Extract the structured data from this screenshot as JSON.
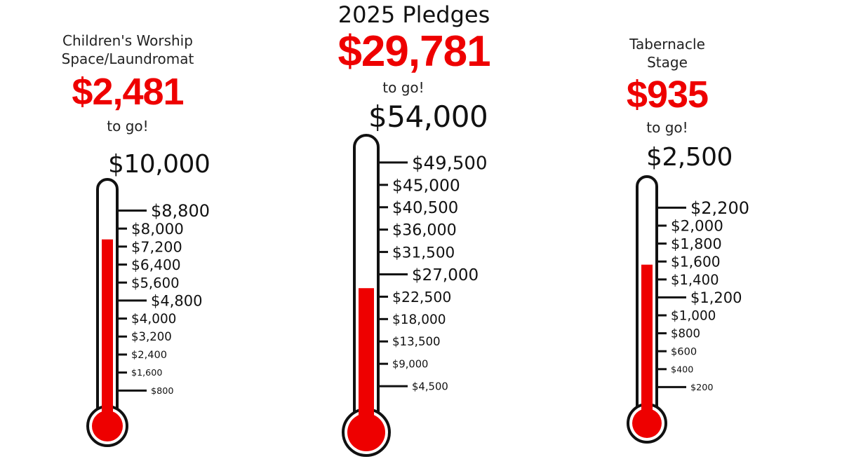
{
  "main_title": "2025 Pledges",
  "colors": {
    "fill": "#ee0000",
    "outline": "#111111",
    "text": "#111111"
  },
  "chart_data": [
    {
      "type": "thermometer",
      "title": "Children's Worship Space/Laundromat",
      "title_lines": [
        "Children's Worship",
        "Space/Laundromat"
      ],
      "remaining": "$2,481",
      "remaining_value": 2481,
      "to_go": "to go!",
      "goal": "$10,000",
      "goal_value": 10000,
      "raised_value": 7519,
      "ticks": [
        {
          "value": 8800,
          "label": "$8,800",
          "major": true
        },
        {
          "value": 8000,
          "label": "$8,000",
          "major": false
        },
        {
          "value": 7200,
          "label": "$7,200",
          "major": false
        },
        {
          "value": 6400,
          "label": "$6,400",
          "major": false
        },
        {
          "value": 5600,
          "label": "$5,600",
          "major": false
        },
        {
          "value": 4800,
          "label": "$4,800",
          "major": true
        },
        {
          "value": 4000,
          "label": "$4,000",
          "major": false
        },
        {
          "value": 3200,
          "label": "$3,200",
          "major": false
        },
        {
          "value": 2400,
          "label": "$2,400",
          "major": false
        },
        {
          "value": 1600,
          "label": "$1,600",
          "major": false
        },
        {
          "value": 800,
          "label": "$800",
          "major": true
        }
      ]
    },
    {
      "type": "thermometer",
      "title": "",
      "title_lines": [],
      "remaining": "$29,781",
      "remaining_value": 29781,
      "to_go": "to go!",
      "goal": "$54,000",
      "goal_value": 54000,
      "raised_value": 24219,
      "ticks": [
        {
          "value": 49500,
          "label": "$49,500",
          "major": true
        },
        {
          "value": 45000,
          "label": "$45,000",
          "major": false
        },
        {
          "value": 40500,
          "label": "$40,500",
          "major": false
        },
        {
          "value": 36000,
          "label": "$36,000",
          "major": false
        },
        {
          "value": 31500,
          "label": "$31,500",
          "major": false
        },
        {
          "value": 27000,
          "label": "$27,000",
          "major": true
        },
        {
          "value": 22500,
          "label": "$22,500",
          "major": false
        },
        {
          "value": 18000,
          "label": "$18,000",
          "major": false
        },
        {
          "value": 13500,
          "label": "$13,500",
          "major": false
        },
        {
          "value": 9000,
          "label": "$9,000",
          "major": false
        },
        {
          "value": 4500,
          "label": "$4,500",
          "major": true
        }
      ]
    },
    {
      "type": "thermometer",
      "title": "Tabernacle Stage",
      "title_lines": [
        "Tabernacle",
        "Stage"
      ],
      "remaining": "$935",
      "remaining_value": 935,
      "to_go": "to go!",
      "goal": "$2,500",
      "goal_value": 2500,
      "raised_value": 1565,
      "ticks": [
        {
          "value": 2200,
          "label": "$2,200",
          "major": true
        },
        {
          "value": 2000,
          "label": "$2,000",
          "major": false
        },
        {
          "value": 1800,
          "label": "$1,800",
          "major": false
        },
        {
          "value": 1600,
          "label": "$1,600",
          "major": false
        },
        {
          "value": 1400,
          "label": "$1,400",
          "major": false
        },
        {
          "value": 1200,
          "label": "$1,200",
          "major": true
        },
        {
          "value": 1000,
          "label": "$1,000",
          "major": false
        },
        {
          "value": 800,
          "label": "$800",
          "major": false
        },
        {
          "value": 600,
          "label": "$600",
          "major": false
        },
        {
          "value": 400,
          "label": "$400",
          "major": false
        },
        {
          "value": 200,
          "label": "$200",
          "major": true
        }
      ]
    }
  ]
}
